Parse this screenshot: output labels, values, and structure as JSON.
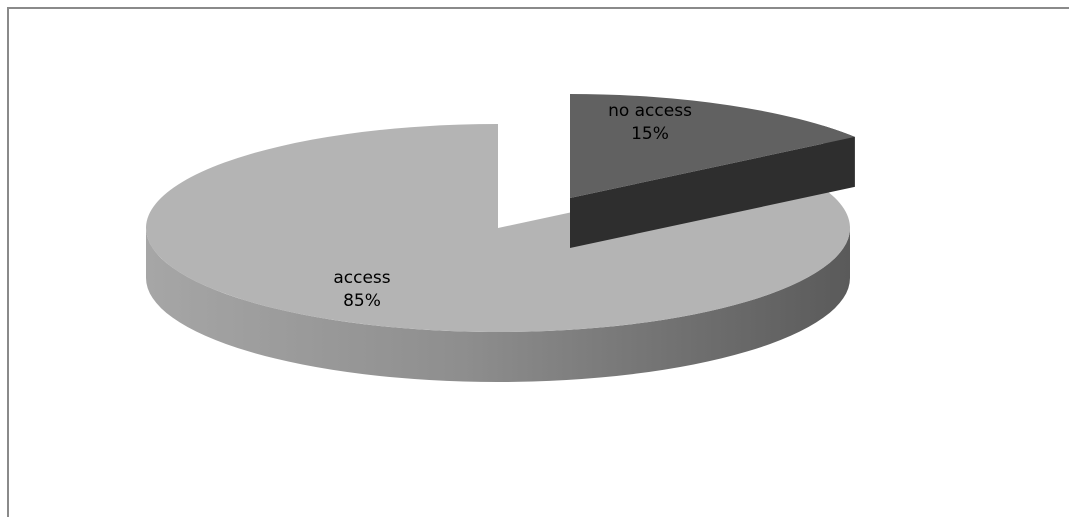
{
  "chart_data": {
    "type": "pie",
    "style": "3d-exploded",
    "title": "",
    "slices": [
      {
        "label": "access",
        "percent_label": "85%",
        "value": 85,
        "color": "#b4b4b4",
        "side_color_dark": "#5a5a5a",
        "side_color_light": "#a6a6a6"
      },
      {
        "label": "no access",
        "percent_label": "15%",
        "value": 15,
        "color": "#616161",
        "side_color_dark": "#2e2e2e",
        "side_color_light": "#3c3c3c",
        "exploded": true
      }
    ],
    "legend": "none"
  }
}
